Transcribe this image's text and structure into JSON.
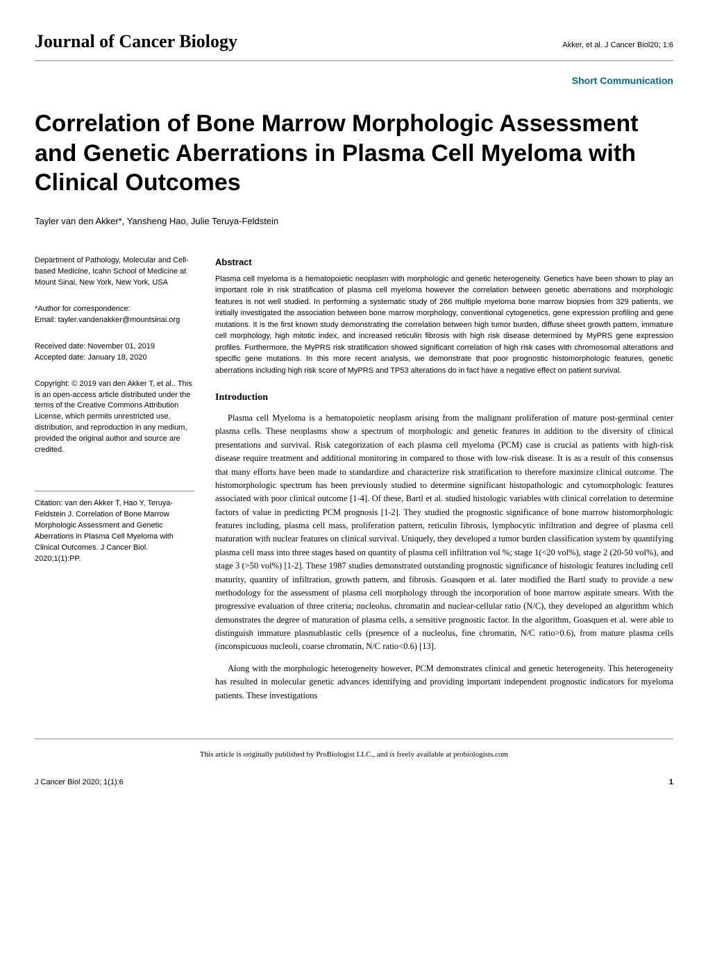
{
  "header": {
    "journal_name": "Journal of Cancer Biology",
    "citation_authors": "Akker, et al.",
    "citation_journal": "J Cancer Biol",
    "citation_issue": "20; 1:6"
  },
  "article_type": "Short Communication",
  "title": "Correlation of Bone Marrow Morphologic Assessment and Genetic Aberrations in Plasma Cell Myeloma with Clinical Outcomes",
  "authors": "Tayler van den Akker*, Yansheng Hao, Julie Teruya-Feldstein",
  "left": {
    "affiliation": "Department of Pathology, Molecular and Cell-based Medicine, Icahn School of Medicine at Mount Sinai, New York, New York, USA",
    "correspondence_label": "*Author for correspondence:",
    "correspondence_email": "Email: tayler.vandenakker@mountsinai.org",
    "received": "Received date: November 01, 2019",
    "accepted": "Accepted date: January 18, 2020",
    "copyright": "Copyright: © 2019 van den Akker T, et al.. This is an open-access article distributed under the terms of the Creative Commons Attribution License, which permits unrestricted use, distribution, and reproduction in any medium, provided the original author and source are credited.",
    "citation": "Citation: van den Akker T, Hao Y, Teruya-Feldstein J. Correlation of Bone Marrow Morphologic Assessment and Genetic Aberrations in Plasma Cell Myeloma with Clinical Outcomes. J Cancer Biol. 2020;1(1):PP."
  },
  "abstract": {
    "heading": "Abstract",
    "text": "Plasma cell myeloma is a hematopoietic neoplasm with morphologic and genetic heterogeneity. Genetics have been shown to play an important role in risk stratification of plasma cell myeloma however the correlation between genetic aberrations and morphologic features is not well studied. In performing a systematic study of 266 multiple myeloma bone marrow biopsies from 329 patients, we initially investigated the association between bone marrow morphology, conventional cytogenetics, gene expression profiling and gene mutations. It is the first known study demonstrating the correlation between high tumor burden, diffuse sheet growth pattern, immature cell morphology, high mitotic index, and increased reticulin fibrosis with high risk disease determined by MyPRS gene expression profiles. Furthermore, the MyPRS risk stratification showed significant correlation of high risk cases with chromosomal alterations and specific gene mutations. In this more recent analysis, we demonstrate that poor prognostic histomorphologic features, genetic aberrations including high risk score of MyPRS and TP53 alterations do in fact have a negative effect on patient survival."
  },
  "introduction": {
    "heading": "Introduction",
    "para1": "Plasma cell Myeloma is a hematopoietic neoplasm arising from the malignant proliferation of mature post-germinal center plasma cells. These neoplasms show a spectrum of morphologic and genetic features in addition to the diversity of clinical presentations and survival. Risk categorization of each plasma cell myeloma (PCM) case is crucial as patients with high-risk disease require treatment and additional monitoring in compared to those with low-risk disease. It is as a result of this consensus that many efforts have been made to standardize and characterize risk stratification to therefore maximize clinical outcome. The histomorphologic spectrum has been previously studied to determine significant histopathologic and cytomorphologic features associated with poor clinical outcome [1-4]. Of these, Bartl et al. studied histologic variables with clinical correlation to determine factors of value in predicting PCM prognosis [1-2]. They studied the prognostic significance of bone marrow histomorphologic features including, plasma cell mass, proliferation pattern, reticulin fibrosis, lymphocytic infiltration and degree of plasma cell maturation with nuclear features on clinical survival. Uniquely, they developed a tumor burden classification system by quantifying plasma cell mass into three stages based on quantity of plasma cell infiltration vol %; stage 1(<20 vol%), stage 2 (20-50 vol%), and stage 3 (>50 vol%) [1-2]. These 1987 studies demonstrated outstanding prognostic significance of histologic features including cell maturity, quantity of infiltration, growth pattern, and fibrosis. Goasquen et al. later modified the Bartl study to provide a new methodology for the assessment of plasma cell morphology through the incorporation of bone marrow aspirate smears. With the progressive evaluation of three criteria; nucleolus, chromatin and nuclear-cellular ratio (N/C), they developed an algorithm which demonstrates the degree of maturation of plasma cells, a sensitive prognostic factor. In the algorithm, Goasquen et al. were able to distinguish immature plasmablastic cells (presence of a nucleolus, fine chromatin, N/C ratio>0.6), from mature plasma cells (inconspicuous nucleoli, coarse chromatin, N/C ratio<0.6) [13].",
    "para2": "Along with the morphologic heterogeneity however, PCM demonstrates clinical and genetic heterogeneity. This heterogeneity has resulted in molecular genetic advances identifying and providing important independent prognostic indicators for myeloma patients. These investigations"
  },
  "footer": {
    "publisher_text": "This article is originally published by ProBiologist LLC., and is freely available at probiologists.com",
    "bottom_citation": "J Cancer Biol 2020; 1(1):6",
    "page_number": "1"
  },
  "colors": {
    "article_type_color": "#006b8f",
    "rule_color": "#888888",
    "text_color": "#000000",
    "background": "#ffffff"
  }
}
